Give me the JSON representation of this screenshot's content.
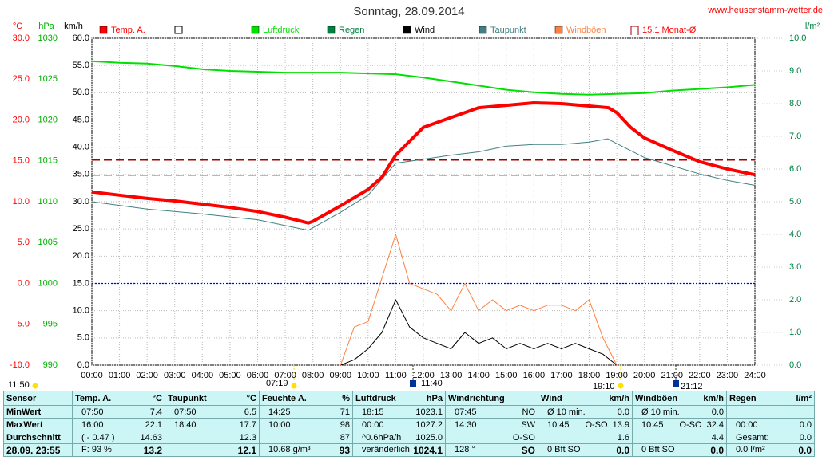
{
  "chart_data": {
    "type": "line",
    "title": "Sonntag, 28.09.2014",
    "site": "www.heusenstamm-wetter.de",
    "xlim": [
      0,
      24
    ],
    "xticks": [
      {
        "value": 0,
        "label": "00:00"
      },
      {
        "value": 1,
        "label": "01:00"
      },
      {
        "value": 2,
        "label": "02:00"
      },
      {
        "value": 3,
        "label": "03:00"
      },
      {
        "value": 4,
        "label": "04:00"
      },
      {
        "value": 5,
        "label": "05:00"
      },
      {
        "value": 6,
        "label": "06:00"
      },
      {
        "value": 7,
        "label": "07:00"
      },
      {
        "value": 8,
        "label": "08:00"
      },
      {
        "value": 9,
        "label": "09:00"
      },
      {
        "value": 10,
        "label": "10:00"
      },
      {
        "value": 11,
        "label": "11:00"
      },
      {
        "value": 12,
        "label": "12:00"
      },
      {
        "value": 13,
        "label": "13:00"
      },
      {
        "value": 14,
        "label": "14:00"
      },
      {
        "value": 15,
        "label": "15:00"
      },
      {
        "value": 16,
        "label": "16:00"
      },
      {
        "value": 17,
        "label": "17:00"
      },
      {
        "value": 18,
        "label": "18:00"
      },
      {
        "value": 19,
        "label": "19:00"
      },
      {
        "value": 20,
        "label": "20:00"
      },
      {
        "value": 21,
        "label": "21:00"
      },
      {
        "value": 22,
        "label": "22:00"
      },
      {
        "value": 23,
        "label": "23:00"
      },
      {
        "value": 24,
        "label": "24:00"
      }
    ],
    "grid": true,
    "grid_axis": 2,
    "axes": [
      {
        "unit": "°C",
        "color": "#ff0000",
        "lim": [
          -10,
          30
        ],
        "ticks": [
          {
            "value": -10,
            "label": "-10.0"
          },
          {
            "value": -5,
            "label": "-5.0"
          },
          {
            "value": 0,
            "label": "0.0"
          },
          {
            "value": 5,
            "label": "5.0"
          },
          {
            "value": 10,
            "label": "10.0"
          },
          {
            "value": 15,
            "label": "15.0"
          },
          {
            "value": 20,
            "label": "20.0"
          },
          {
            "value": 25,
            "label": "25.0"
          },
          {
            "value": 30,
            "label": "30.0"
          }
        ]
      },
      {
        "unit": "hPa",
        "color": "#00b000",
        "lim": [
          990,
          1030
        ],
        "ticks": [
          990,
          995,
          1000,
          1005,
          1010,
          1015,
          1020,
          1025,
          1030
        ]
      },
      {
        "unit": "km/h",
        "color": "#000000",
        "lim": [
          0,
          60
        ],
        "ticks": [
          {
            "value": 0,
            "label": "0.0"
          },
          {
            "value": 5,
            "label": "5.0"
          },
          {
            "value": 10,
            "label": "10.0"
          },
          {
            "value": 15,
            "label": "15.0"
          },
          {
            "value": 20,
            "label": "20.0"
          },
          {
            "value": 25,
            "label": "25.0"
          },
          {
            "value": 30,
            "label": "30.0"
          },
          {
            "value": 35,
            "label": "35.0"
          },
          {
            "value": 40,
            "label": "40.0"
          },
          {
            "value": 45,
            "label": "45.0"
          },
          {
            "value": 50,
            "label": "50.0"
          },
          {
            "value": 55,
            "label": "55.0"
          },
          {
            "value": 60,
            "label": "60.0"
          }
        ]
      },
      {
        "unit": "l/m²",
        "color": "#008040",
        "lim": [
          0,
          10
        ],
        "ticks": [
          {
            "value": 0,
            "label": "0.0"
          },
          {
            "value": 1,
            "label": "1.0"
          },
          {
            "value": 2,
            "label": "2.0"
          },
          {
            "value": 3,
            "label": "3.0"
          },
          {
            "value": 4,
            "label": "4.0"
          },
          {
            "value": 5,
            "label": "5.0"
          },
          {
            "value": 6,
            "label": "6.0"
          },
          {
            "value": 7,
            "label": "7.0"
          },
          {
            "value": 8,
            "label": "8.0"
          },
          {
            "value": 9,
            "label": "9.0"
          },
          {
            "value": 10,
            "label": "10.0"
          }
        ]
      }
    ],
    "series": [
      {
        "name": "Temp. A.",
        "color": "#ff0000",
        "axis": 0,
        "width": 4,
        "x": [
          0,
          1,
          2,
          3,
          4,
          5,
          6,
          7,
          7.83,
          8,
          9,
          10,
          10.5,
          11,
          11.5,
          12,
          13,
          14,
          15,
          16,
          17,
          18.7,
          19,
          19.5,
          20,
          21,
          22,
          23,
          24
        ],
        "values": [
          11.2,
          10.8,
          10.4,
          10.1,
          9.7,
          9.3,
          8.8,
          8.1,
          7.4,
          7.6,
          9.5,
          11.5,
          13.0,
          15.7,
          17.4,
          19.1,
          20.3,
          21.5,
          21.8,
          22.1,
          22.0,
          21.5,
          20.9,
          19.1,
          17.8,
          16.3,
          14.9,
          14.0,
          13.3
        ]
      },
      {
        "name": "Luftdruck",
        "color": "#00e000",
        "axis": 1,
        "width": 2,
        "x": [
          0,
          1,
          2,
          3,
          4,
          5,
          6,
          7,
          8,
          9,
          10,
          11,
          12,
          13,
          14,
          15,
          16,
          17,
          18,
          19,
          20,
          21,
          22,
          23,
          24
        ],
        "values": [
          1027.2,
          1027.0,
          1026.9,
          1026.6,
          1026.2,
          1026.0,
          1025.9,
          1025.8,
          1025.8,
          1025.8,
          1025.7,
          1025.6,
          1025.2,
          1024.7,
          1024.2,
          1023.7,
          1023.4,
          1023.2,
          1023.1,
          1023.2,
          1023.3,
          1023.6,
          1023.8,
          1024.0,
          1024.3
        ]
      },
      {
        "name": "Regen",
        "color": "#008040",
        "axis": 3
      },
      {
        "name": "Wind",
        "color": "#000000",
        "axis": 2,
        "width": 1,
        "x": [
          9,
          9.5,
          10,
          10.5,
          11,
          11.5,
          12,
          12.5,
          13,
          13.5,
          14,
          14.5,
          15,
          15.5,
          16,
          16.5,
          17,
          17.5,
          18,
          18.5,
          19
        ],
        "values": [
          0,
          1,
          3,
          6,
          12,
          7,
          5,
          4,
          3,
          6,
          4,
          5,
          3,
          4,
          3,
          4,
          3,
          4,
          3,
          2,
          0
        ]
      },
      {
        "name": "Taupunkt",
        "color": "#408080",
        "axis": 0,
        "width": 1,
        "x": [
          0,
          2,
          4,
          6,
          7.83,
          9,
          10,
          11,
          12,
          13,
          14,
          15,
          16,
          17,
          18,
          18.67,
          19,
          20,
          21,
          22,
          23,
          24
        ],
        "values": [
          10.0,
          9.1,
          8.5,
          7.8,
          6.5,
          8.7,
          10.8,
          14.7,
          15.2,
          15.7,
          16.1,
          16.8,
          17.0,
          17.0,
          17.3,
          17.7,
          17.1,
          15.4,
          14.4,
          13.4,
          12.6,
          12.0
        ]
      },
      {
        "name": "Windböen",
        "color": "#ff8040",
        "axis": 2,
        "width": 1,
        "x": [
          9,
          9.5,
          10,
          10.5,
          11,
          11.5,
          12,
          12.5,
          13,
          13.5,
          14,
          14.5,
          15,
          15.5,
          16,
          16.5,
          17,
          17.5,
          18,
          18.5,
          19
        ],
        "values": [
          0,
          7,
          8,
          16,
          24,
          15,
          14,
          13,
          10,
          15,
          10,
          12,
          10,
          11,
          10,
          11,
          11,
          10,
          12,
          5,
          0
        ]
      }
    ],
    "reference_lines": [
      {
        "name": "15.1 Monat-Ø",
        "value": 15.1,
        "axis": 0,
        "color": "#a00000",
        "style": "dashed"
      },
      {
        "value": 1013.25,
        "axis": 1,
        "color": "#00c000",
        "style": "dashed"
      },
      {
        "value": 0,
        "axis": 0,
        "color": "#0000ff",
        "style": "dotted"
      }
    ],
    "annotations": [
      "11:50",
      "07:19",
      "11:40",
      "19:10",
      "21:12"
    ]
  },
  "table": {
    "header": [
      {
        "l": "Sensor"
      },
      {
        "l": "Temp. A.",
        "r": "°C"
      },
      {
        "l": "Taupunkt",
        "r": "°C"
      },
      {
        "l": "Feuchte A.",
        "r": "%"
      },
      {
        "l": "Luftdruck",
        "r": "hPa"
      },
      {
        "l": "Windrichtung"
      },
      {
        "l": "Wind",
        "r": "km/h"
      },
      {
        "l": "Windböen",
        "r": "km/h"
      },
      {
        "l": "Regen",
        "r": "l/m²"
      }
    ],
    "rows": [
      [
        {
          "l": "MinWert"
        },
        {
          "l": "07:50",
          "r": "7.4"
        },
        {
          "l": "07:50",
          "r": "6.5"
        },
        {
          "l": "14:25",
          "r": "71"
        },
        {
          "l": "18:15",
          "r": "1023.1"
        },
        {
          "l": "07:45",
          "r": "NO"
        },
        {
          "l": "Ø 10 min.",
          "r": "0.0"
        },
        {
          "l": "Ø 10 min.",
          "r": "0.0"
        },
        {}
      ],
      [
        {
          "l": "MaxWert"
        },
        {
          "l": "16:00",
          "r": "22.1"
        },
        {
          "l": "18:40",
          "r": "17.7"
        },
        {
          "l": "10:00",
          "r": "98"
        },
        {
          "l": "00:00",
          "r": "1027.2"
        },
        {
          "l": "14:30",
          "r": "SW"
        },
        {
          "l": "10:45",
          "m": "O-SO",
          "r": "13.9"
        },
        {
          "l": "10:45",
          "m": "O-SO",
          "r": "32.4"
        },
        {
          "l": "00:00",
          "r": "0.0"
        }
      ],
      [
        {
          "l": "Durchschnitt"
        },
        {
          "l": "( - 0.47 )",
          "r": "14.63"
        },
        {
          "r": "12.3"
        },
        {
          "r": "87"
        },
        {
          "l": "^0.6hPa/h",
          "r": "1025.0"
        },
        {
          "r": "O-SO"
        },
        {
          "r": "1.6"
        },
        {
          "r": "4.4"
        },
        {
          "l": "Gesamt:",
          "r": "0.0"
        }
      ],
      [
        {
          "l": "28.09. 23:55"
        },
        {
          "l": "F: 93 %",
          "r": "13.2"
        },
        {
          "r": "12.1"
        },
        {
          "l": "10.68 g/m³",
          "r": "93"
        },
        {
          "l": "veränderlich",
          "r": "1024.1"
        },
        {
          "l": "128 °",
          "r": "SO"
        },
        {
          "l": "0 Bft SO",
          "r": "0.0"
        },
        {
          "l": "0 Bft SO",
          "r": "0.0"
        },
        {
          "l": "0.0 l/m²",
          "r": "0.0"
        }
      ]
    ]
  }
}
